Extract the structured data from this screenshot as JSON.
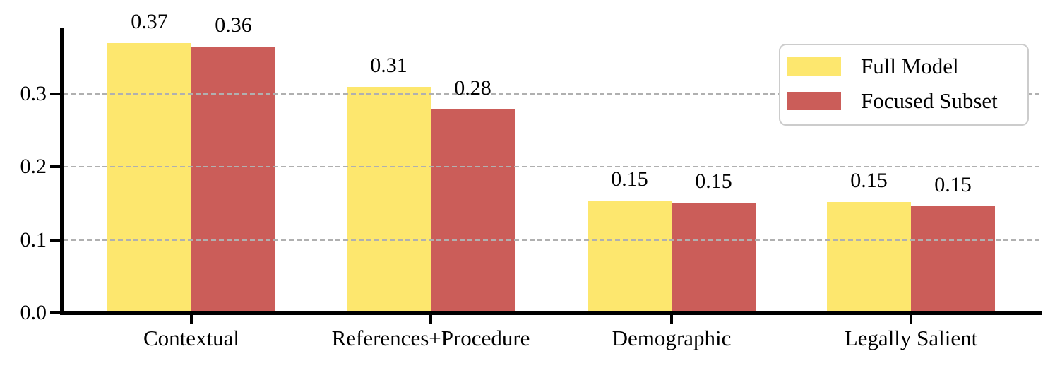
{
  "chart_data": {
    "type": "bar",
    "title": "",
    "xlabel": "",
    "ylabel": "",
    "categories": [
      "Contextual",
      "References+Procedure",
      "Demographic",
      "Legally Salient"
    ],
    "series": [
      {
        "name": "Full Model",
        "color": "#FDE76E",
        "values": [
          0.37,
          0.31,
          0.15,
          0.15
        ],
        "bar_labels": [
          "0.37",
          "0.31",
          "0.15",
          "0.15"
        ],
        "values_precise": [
          0.37,
          0.31,
          0.154,
          0.152
        ]
      },
      {
        "name": "Focused Subset",
        "color": "#CB5D59",
        "values": [
          0.36,
          0.28,
          0.15,
          0.15
        ],
        "bar_labels": [
          "0.36",
          "0.28",
          "0.15",
          "0.15"
        ],
        "values_precise": [
          0.365,
          0.279,
          0.151,
          0.146
        ]
      }
    ],
    "ylim": [
      0,
      0.39
    ],
    "yticks": [
      0.0,
      0.1,
      0.2,
      0.3
    ],
    "ytick_labels": [
      "0.0",
      "0.1",
      "0.2",
      "0.3"
    ],
    "grid": "horizontal dashed, drawn over bars",
    "grid_color": "#b0b0b0",
    "axis_color": "#000000",
    "background_color": "#ffffff",
    "legend": {
      "position": "upper right",
      "entries": [
        "Full Model",
        "Focused Subset"
      ]
    }
  }
}
